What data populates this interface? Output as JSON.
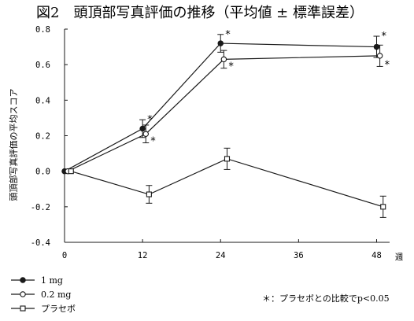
{
  "chart_data": {
    "type": "line",
    "title": "図2　頭頂部写真評価の推移（平均値 ± 標準誤差）",
    "xlabel": "週",
    "ylabel": "頭頂部写真評価の平均スコア",
    "xlim": [
      0,
      50
    ],
    "ylim": [
      -0.4,
      0.8
    ],
    "x_ticks": [
      0,
      12,
      24,
      36,
      48
    ],
    "y_ticks": [
      "0.8",
      "0.6",
      "0.4",
      "0.2",
      "0.0",
      "-0.2",
      "-0.4"
    ],
    "grid": false,
    "legend_position": "bottom-left",
    "footnote": "＊：プラセボとの比較でp<0.05",
    "significance_mark": "*",
    "series": [
      {
        "name": "1 mg",
        "marker": "filled-circle",
        "points": [
          {
            "x": 0,
            "y": 0.0,
            "err": 0.0
          },
          {
            "x": 12,
            "y": 0.24,
            "err": 0.05,
            "sig": true
          },
          {
            "x": 24,
            "y": 0.72,
            "err": 0.05,
            "sig": true
          },
          {
            "x": 48,
            "y": 0.7,
            "err": 0.06,
            "sig": true
          }
        ]
      },
      {
        "name": "0.2 mg",
        "marker": "open-circle",
        "points": [
          {
            "x": 0.5,
            "y": 0.0,
            "err": 0.0
          },
          {
            "x": 12.5,
            "y": 0.21,
            "err": 0.05,
            "sig": true
          },
          {
            "x": 24.5,
            "y": 0.63,
            "err": 0.05,
            "sig": true
          },
          {
            "x": 48.5,
            "y": 0.65,
            "err": 0.06,
            "sig": true
          }
        ]
      },
      {
        "name": "プラセボ",
        "marker": "open-square",
        "points": [
          {
            "x": 1,
            "y": 0.0,
            "err": 0.0
          },
          {
            "x": 13,
            "y": -0.13,
            "err": 0.05
          },
          {
            "x": 25,
            "y": 0.07,
            "err": 0.06
          },
          {
            "x": 49,
            "y": -0.2,
            "err": 0.06
          }
        ]
      }
    ]
  }
}
